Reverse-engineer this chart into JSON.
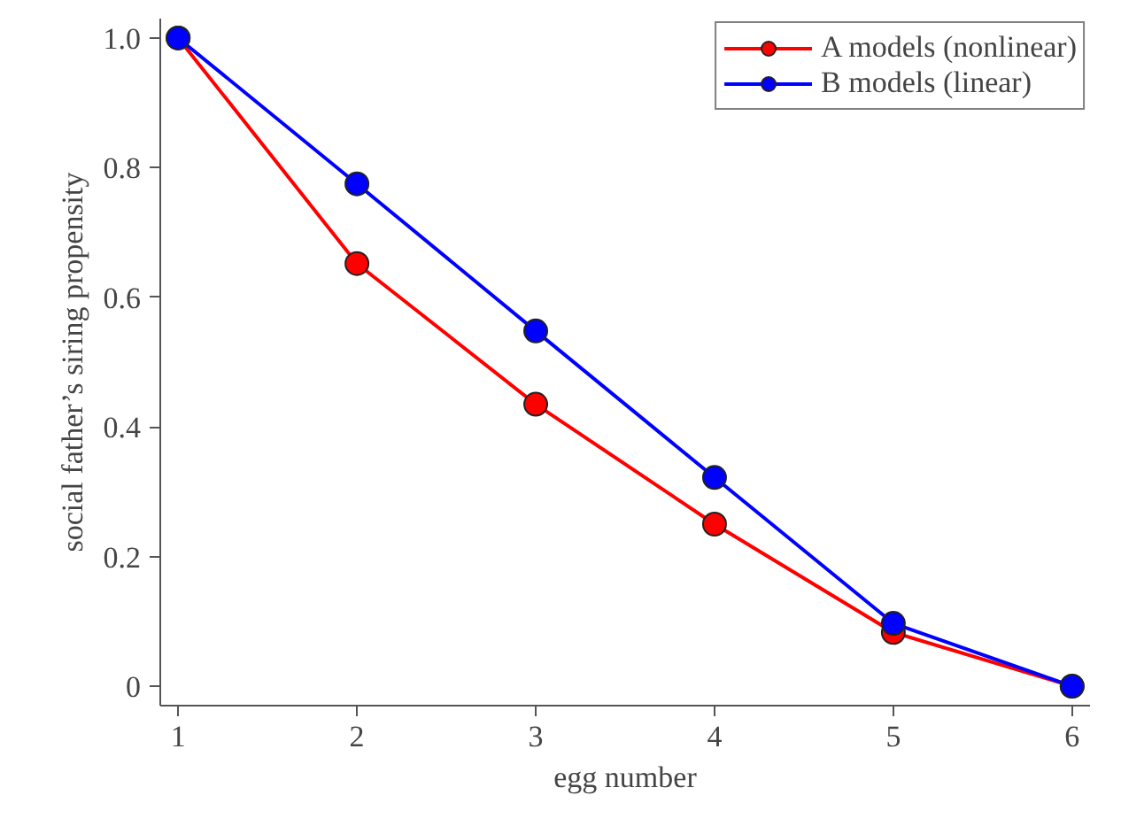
{
  "chart_data": {
    "type": "line",
    "xlabel": "egg number",
    "ylabel": "social father’s siring propensity",
    "x": [
      1,
      2,
      3,
      4,
      5,
      6
    ],
    "series": [
      {
        "name": "A models (nonlinear)",
        "color": "#ff0000",
        "values": [
          1.0,
          0.652,
          0.435,
          0.25,
          0.083,
          0.0
        ]
      },
      {
        "name": "B models (linear)",
        "color": "#0000ff",
        "values": [
          1.0,
          0.775,
          0.548,
          0.322,
          0.097,
          0.0
        ]
      }
    ],
    "xlim": [
      0.9,
      6.1
    ],
    "ylim": [
      -0.03,
      1.03
    ],
    "xticks": [
      1,
      2,
      3,
      4,
      5,
      6
    ],
    "yticks": [
      0,
      0.2,
      0.4,
      0.6,
      0.8,
      {
        "value": 1.0,
        "label": "1.0"
      }
    ],
    "grid": false,
    "legend": "top right",
    "marker": "circle",
    "line_style": "solid"
  }
}
